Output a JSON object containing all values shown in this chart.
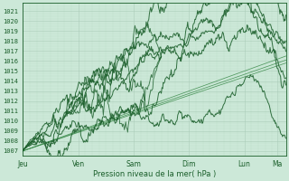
{
  "bg_color": "#cce8d8",
  "grid_color_major": "#aaccb8",
  "grid_color_minor": "#bbddc8",
  "line_color_dark": "#1a5e2a",
  "line_color_light": "#3a8a4a",
  "ylabel_values": [
    1007,
    1008,
    1009,
    1010,
    1011,
    1012,
    1013,
    1014,
    1015,
    1016,
    1017,
    1018,
    1019,
    1020,
    1021
  ],
  "ymin": 1006.5,
  "ymax": 1021.8,
  "xlabel": "Pression niveau de la mer( hPa )",
  "day_labels": [
    "Jeu",
    "Ven",
    "Sam",
    "Dim",
    "Lun",
    "Ma"
  ],
  "day_positions": [
    0.0,
    1.0,
    2.0,
    3.0,
    4.0,
    4.6
  ],
  "xmin": 0.0,
  "xmax": 4.75
}
